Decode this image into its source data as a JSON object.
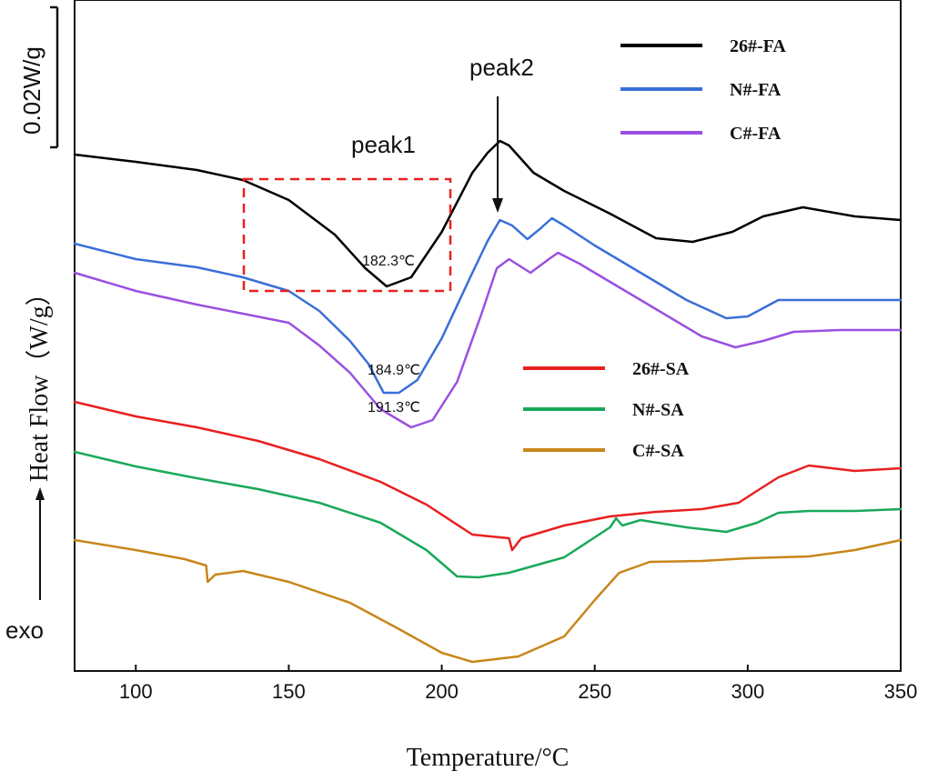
{
  "chart_data": {
    "type": "line",
    "xlabel": "Temperature/°C",
    "ylabel": "Heat Flow（W/g）",
    "xlim": [
      80,
      350
    ],
    "x_ticks": [
      "100",
      "150",
      "200",
      "250",
      "300",
      "350"
    ],
    "x_tick_values": [
      100,
      150,
      200,
      250,
      300,
      350
    ],
    "y_ticks_shown": false,
    "scale_bar_label": "0.02W/g",
    "exo_label": "exo",
    "annotations": {
      "peak1": "peak1",
      "peak2": "peak2",
      "peak1_values": [
        "182.3℃",
        "184.9℃",
        "191.3℃"
      ]
    },
    "legend_fa": [
      "26#-FA",
      "N#-FA",
      "C#-FA"
    ],
    "legend_sa": [
      "26#-SA",
      "N#-SA",
      "C#-SA"
    ],
    "series": [
      {
        "name": "26#-FA",
        "color": "#000000",
        "points": [
          [
            80,
            170
          ],
          [
            100,
            178
          ],
          [
            120,
            187
          ],
          [
            135,
            198
          ],
          [
            150,
            220
          ],
          [
            165,
            258
          ],
          [
            175,
            295
          ],
          [
            182,
            315
          ],
          [
            190,
            305
          ],
          [
            200,
            255
          ],
          [
            210,
            190
          ],
          [
            215,
            168
          ],
          [
            219,
            155
          ],
          [
            222,
            160
          ],
          [
            230,
            190
          ],
          [
            240,
            210
          ],
          [
            255,
            235
          ],
          [
            270,
            262
          ],
          [
            282,
            266
          ],
          [
            295,
            255
          ],
          [
            305,
            238
          ],
          [
            318,
            228
          ],
          [
            335,
            238
          ],
          [
            350,
            242
          ]
        ]
      },
      {
        "name": "N#-FA",
        "color": "#3a6fd8",
        "points": [
          [
            80,
            268
          ],
          [
            100,
            285
          ],
          [
            120,
            294
          ],
          [
            135,
            305
          ],
          [
            150,
            320
          ],
          [
            160,
            342
          ],
          [
            170,
            375
          ],
          [
            176,
            400
          ],
          [
            181,
            432
          ],
          [
            186,
            432
          ],
          [
            192,
            418
          ],
          [
            200,
            372
          ],
          [
            210,
            300
          ],
          [
            215,
            265
          ],
          [
            219,
            242
          ],
          [
            223,
            248
          ],
          [
            228,
            263
          ],
          [
            232,
            252
          ],
          [
            236,
            240
          ],
          [
            240,
            248
          ],
          [
            250,
            270
          ],
          [
            265,
            300
          ],
          [
            280,
            330
          ],
          [
            293,
            350
          ],
          [
            300,
            348
          ],
          [
            310,
            330
          ],
          [
            320,
            330
          ],
          [
            335,
            330
          ],
          [
            350,
            330
          ]
        ]
      },
      {
        "name": "C#-FA",
        "color": "#9a50e0",
        "points": [
          [
            80,
            300
          ],
          [
            100,
            320
          ],
          [
            120,
            335
          ],
          [
            135,
            345
          ],
          [
            150,
            355
          ],
          [
            160,
            380
          ],
          [
            170,
            410
          ],
          [
            180,
            450
          ],
          [
            190,
            470
          ],
          [
            197,
            462
          ],
          [
            205,
            420
          ],
          [
            213,
            345
          ],
          [
            218,
            295
          ],
          [
            222,
            285
          ],
          [
            229,
            300
          ],
          [
            235,
            285
          ],
          [
            238,
            278
          ],
          [
            245,
            290
          ],
          [
            255,
            310
          ],
          [
            270,
            340
          ],
          [
            285,
            370
          ],
          [
            296,
            382
          ],
          [
            305,
            375
          ],
          [
            315,
            365
          ],
          [
            330,
            363
          ],
          [
            350,
            363
          ]
        ]
      },
      {
        "name": "26#-SA",
        "color": "#e82020",
        "points": [
          [
            80,
            442
          ],
          [
            100,
            458
          ],
          [
            120,
            470
          ],
          [
            140,
            485
          ],
          [
            160,
            505
          ],
          [
            180,
            530
          ],
          [
            195,
            555
          ],
          [
            210,
            588
          ],
          [
            222,
            592
          ],
          [
            223,
            605
          ],
          [
            226,
            592
          ],
          [
            240,
            578
          ],
          [
            255,
            568
          ],
          [
            270,
            563
          ],
          [
            285,
            560
          ],
          [
            297,
            553
          ],
          [
            303,
            540
          ],
          [
            310,
            525
          ],
          [
            320,
            512
          ],
          [
            335,
            518
          ],
          [
            350,
            515
          ]
        ]
      },
      {
        "name": "N#-SA",
        "color": "#1aa85a",
        "points": [
          [
            80,
            497
          ],
          [
            100,
            513
          ],
          [
            120,
            526
          ],
          [
            140,
            538
          ],
          [
            160,
            553
          ],
          [
            180,
            575
          ],
          [
            195,
            605
          ],
          [
            205,
            634
          ],
          [
            212,
            635
          ],
          [
            222,
            630
          ],
          [
            240,
            613
          ],
          [
            255,
            580
          ],
          [
            257,
            570
          ],
          [
            259,
            578
          ],
          [
            265,
            572
          ],
          [
            280,
            580
          ],
          [
            293,
            585
          ],
          [
            303,
            575
          ],
          [
            310,
            564
          ],
          [
            320,
            562
          ],
          [
            335,
            562
          ],
          [
            350,
            560
          ]
        ]
      },
      {
        "name": "C#-SA",
        "color": "#c8861a",
        "points": [
          [
            80,
            594
          ],
          [
            100,
            605
          ],
          [
            116,
            615
          ],
          [
            123,
            622
          ],
          [
            123.5,
            640
          ],
          [
            126,
            632
          ],
          [
            135,
            628
          ],
          [
            150,
            640
          ],
          [
            170,
            663
          ],
          [
            185,
            690
          ],
          [
            200,
            718
          ],
          [
            210,
            728
          ],
          [
            225,
            722
          ],
          [
            240,
            700
          ],
          [
            250,
            660
          ],
          [
            258,
            630
          ],
          [
            268,
            618
          ],
          [
            285,
            617
          ],
          [
            300,
            614
          ],
          [
            320,
            612
          ],
          [
            335,
            605
          ],
          [
            350,
            594
          ]
        ]
      }
    ]
  }
}
